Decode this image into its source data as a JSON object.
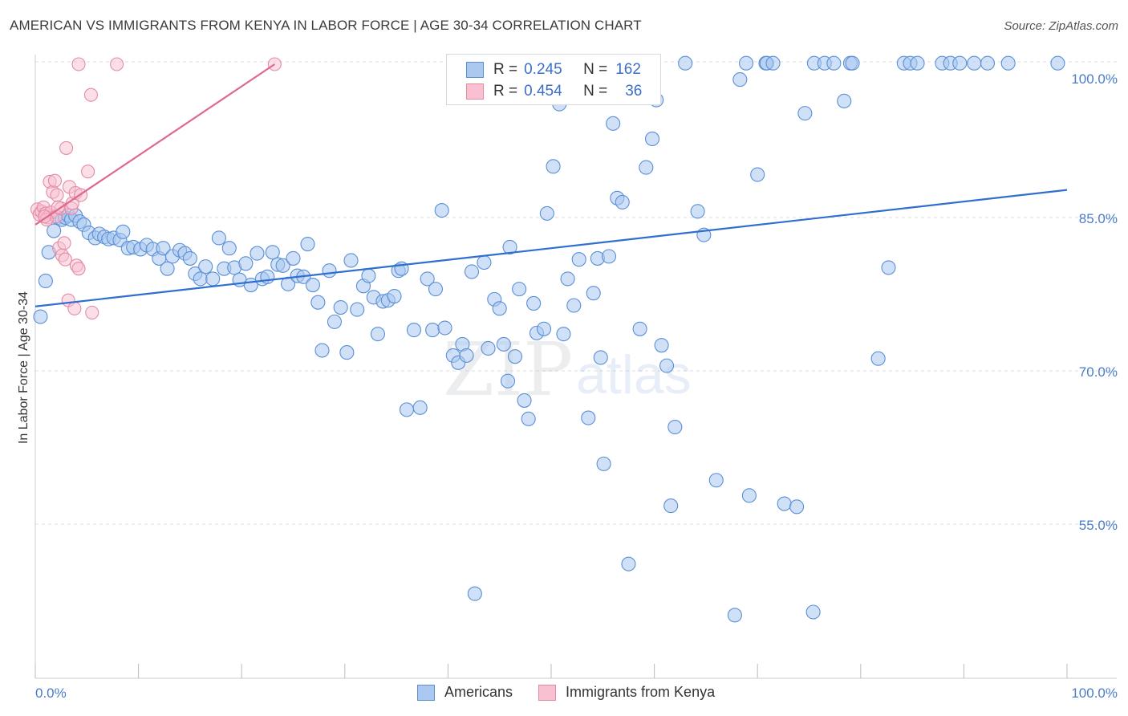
{
  "title": "AMERICAN VS IMMIGRANTS FROM KENYA IN LABOR FORCE | AGE 30-34 CORRELATION CHART",
  "source": "Source: ZipAtlas.com",
  "watermark": {
    "zip": "ZIP",
    "atlas": "atlas"
  },
  "legend": {
    "r_label": "R =",
    "n_label": "N =",
    "rows": [
      {
        "r": "0.245",
        "n": "162",
        "fill": "#aac8f0",
        "stroke": "#5a8fd6"
      },
      {
        "r": "0.454",
        "n": "36",
        "fill": "#f8c0d0",
        "stroke": "#e58aa6"
      }
    ]
  },
  "bottom_legend": [
    "Americans",
    "Immigrants from Kenya"
  ],
  "colors": {
    "blue_fill": "#aac8f0",
    "blue_stroke": "#5a8fd6",
    "blue_line": "#2f6fd0",
    "pink_fill": "#f8c0d0",
    "pink_stroke": "#e58aa6",
    "pink_line": "#e0678e",
    "grid": "#dddddd",
    "tick_text": "#4a7cc9"
  },
  "chart_data": {
    "type": "scatter",
    "xlabel": "",
    "ylabel": "In Labor Force | Age 30-34",
    "xlim": [
      0,
      100
    ],
    "ylim": [
      40,
      101
    ],
    "x_tick_labels": [
      "0.0%",
      "100.0%"
    ],
    "y_tick_labels": [
      "55.0%",
      "70.0%",
      "85.0%",
      "100.0%"
    ],
    "y_ticks": [
      55,
      70,
      85,
      100
    ],
    "grid": "horizontal dashed",
    "legend_position": "top-center",
    "series": [
      {
        "name": "Americans",
        "trend": [
          [
            0,
            76.3
          ],
          [
            100,
            87.7
          ]
        ],
        "points": [
          [
            0.5,
            75.3
          ],
          [
            1,
            78.8
          ],
          [
            1.3,
            81.6
          ],
          [
            1.8,
            83.7
          ],
          [
            2.2,
            85.0
          ],
          [
            2.6,
            84.8
          ],
          [
            2.9,
            85.0
          ],
          [
            3.2,
            85.2
          ],
          [
            3.5,
            84.8
          ],
          [
            3.9,
            85.2
          ],
          [
            4.3,
            84.6
          ],
          [
            4.7,
            84.3
          ],
          [
            5.2,
            83.5
          ],
          [
            5.8,
            83.0
          ],
          [
            6.2,
            83.4
          ],
          [
            6.7,
            83.1
          ],
          [
            7.1,
            82.9
          ],
          [
            7.6,
            83.0
          ],
          [
            8.2,
            82.8
          ],
          [
            8.5,
            83.6
          ],
          [
            9.0,
            82.0
          ],
          [
            9.5,
            82.1
          ],
          [
            10.2,
            81.9
          ],
          [
            10.8,
            82.3
          ],
          [
            11.4,
            81.9
          ],
          [
            12.0,
            81.0
          ],
          [
            12.4,
            82.0
          ],
          [
            12.8,
            80.0
          ],
          [
            13.3,
            81.2
          ],
          [
            14.0,
            81.8
          ],
          [
            14.5,
            81.5
          ],
          [
            15.0,
            81.0
          ],
          [
            15.5,
            79.5
          ],
          [
            16.0,
            79.0
          ],
          [
            16.5,
            80.2
          ],
          [
            17.2,
            79.0
          ],
          [
            17.8,
            83.0
          ],
          [
            18.3,
            80.0
          ],
          [
            18.8,
            82.0
          ],
          [
            19.3,
            80.1
          ],
          [
            19.8,
            78.9
          ],
          [
            20.4,
            80.5
          ],
          [
            20.9,
            78.4
          ],
          [
            21.5,
            81.5
          ],
          [
            22.0,
            79.0
          ],
          [
            22.5,
            79.2
          ],
          [
            23.0,
            81.6
          ],
          [
            23.5,
            80.4
          ],
          [
            24.0,
            80.3
          ],
          [
            24.5,
            78.5
          ],
          [
            25.0,
            81.0
          ],
          [
            25.4,
            79.3
          ],
          [
            26.0,
            79.2
          ],
          [
            26.4,
            82.4
          ],
          [
            26.9,
            78.4
          ],
          [
            27.4,
            76.7
          ],
          [
            27.8,
            72.0
          ],
          [
            28.5,
            79.8
          ],
          [
            29.0,
            74.8
          ],
          [
            29.6,
            76.2
          ],
          [
            30.2,
            71.8
          ],
          [
            30.6,
            80.8
          ],
          [
            31.2,
            76.0
          ],
          [
            31.8,
            78.3
          ],
          [
            32.3,
            79.3
          ],
          [
            32.8,
            77.2
          ],
          [
            33.2,
            73.6
          ],
          [
            33.7,
            76.8
          ],
          [
            34.2,
            76.9
          ],
          [
            34.8,
            77.3
          ],
          [
            35.2,
            79.8
          ],
          [
            35.5,
            80.0
          ],
          [
            36.0,
            66.2
          ],
          [
            36.7,
            74.0
          ],
          [
            37.3,
            66.4
          ],
          [
            38.0,
            79.0
          ],
          [
            38.5,
            74.0
          ],
          [
            38.8,
            78.0
          ],
          [
            39.4,
            85.7
          ],
          [
            39.7,
            74.2
          ],
          [
            40.5,
            71.5
          ],
          [
            41.0,
            70.8
          ],
          [
            41.4,
            72.6
          ],
          [
            41.8,
            71.5
          ],
          [
            42.3,
            79.7
          ],
          [
            42.6,
            48.2
          ],
          [
            43.5,
            80.6
          ],
          [
            43.9,
            72.2
          ],
          [
            44.5,
            77.0
          ],
          [
            45.0,
            76.1
          ],
          [
            45.4,
            72.6
          ],
          [
            45.8,
            69.0
          ],
          [
            46.0,
            82.1
          ],
          [
            46.5,
            71.4
          ],
          [
            46.9,
            78.0
          ],
          [
            47.4,
            67.1
          ],
          [
            47.8,
            65.3
          ],
          [
            48.3,
            76.6
          ],
          [
            48.6,
            73.7
          ],
          [
            49.3,
            74.1
          ],
          [
            49.6,
            85.4
          ],
          [
            50.2,
            90.0
          ],
          [
            50.8,
            96.1
          ],
          [
            51.2,
            73.6
          ],
          [
            51.6,
            79.0
          ],
          [
            52.2,
            76.4
          ],
          [
            52.7,
            80.9
          ],
          [
            53.1,
            100.1
          ],
          [
            53.6,
            65.4
          ],
          [
            54.1,
            77.6
          ],
          [
            54.5,
            81.0
          ],
          [
            54.8,
            71.3
          ],
          [
            55.1,
            60.9
          ],
          [
            55.6,
            81.2
          ],
          [
            56.0,
            94.2
          ],
          [
            56.4,
            86.9
          ],
          [
            56.9,
            86.5
          ],
          [
            57.5,
            51.1
          ],
          [
            58.0,
            100.1
          ],
          [
            58.6,
            74.1
          ],
          [
            59.2,
            89.9
          ],
          [
            59.8,
            92.7
          ],
          [
            60.2,
            96.5
          ],
          [
            60.7,
            72.5
          ],
          [
            61.2,
            70.5
          ],
          [
            61.6,
            56.8
          ],
          [
            62.0,
            64.5
          ],
          [
            63.0,
            100.1
          ],
          [
            64.2,
            85.6
          ],
          [
            64.8,
            83.3
          ],
          [
            66.0,
            59.3
          ],
          [
            67.8,
            46.1
          ],
          [
            68.3,
            98.5
          ],
          [
            68.9,
            100.1
          ],
          [
            69.2,
            57.8
          ],
          [
            70.0,
            89.2
          ],
          [
            70.8,
            100.1
          ],
          [
            70.9,
            100.1
          ],
          [
            71.5,
            100.1
          ],
          [
            72.6,
            57.0
          ],
          [
            73.8,
            56.7
          ],
          [
            74.6,
            95.2
          ],
          [
            75.4,
            46.4
          ],
          [
            75.5,
            100.1
          ],
          [
            76.5,
            100.1
          ],
          [
            77.4,
            100.1
          ],
          [
            78.4,
            96.4
          ],
          [
            79.0,
            100.1
          ],
          [
            79.2,
            100.1
          ],
          [
            81.7,
            71.2
          ],
          [
            82.7,
            80.1
          ],
          [
            84.2,
            100.1
          ],
          [
            84.8,
            100.1
          ],
          [
            85.5,
            100.1
          ],
          [
            87.9,
            100.1
          ],
          [
            88.7,
            100.1
          ],
          [
            89.6,
            100.1
          ],
          [
            91.0,
            100.1
          ],
          [
            92.3,
            100.1
          ],
          [
            94.3,
            100.1
          ],
          [
            99.1,
            100.1
          ]
        ]
      },
      {
        "name": "Immigrants from Kenya",
        "trend": [
          [
            0,
            84.3
          ],
          [
            23.2,
            100.0
          ]
        ],
        "points": [
          [
            0.2,
            85.8
          ],
          [
            0.4,
            85.3
          ],
          [
            0.6,
            85.6
          ],
          [
            0.8,
            86.0
          ],
          [
            1.0,
            85.4
          ],
          [
            1.2,
            85.0
          ],
          [
            1.4,
            88.5
          ],
          [
            1.5,
            85.5
          ],
          [
            1.7,
            87.5
          ],
          [
            1.9,
            88.6
          ],
          [
            2.0,
            85.1
          ],
          [
            2.1,
            87.2
          ],
          [
            2.3,
            82.0
          ],
          [
            2.5,
            85.9
          ],
          [
            2.6,
            81.3
          ],
          [
            2.8,
            82.5
          ],
          [
            2.9,
            80.9
          ],
          [
            3.0,
            91.8
          ],
          [
            3.2,
            76.9
          ],
          [
            3.3,
            88.0
          ],
          [
            3.5,
            85.9
          ],
          [
            3.6,
            86.4
          ],
          [
            3.8,
            76.1
          ],
          [
            3.9,
            87.4
          ],
          [
            4.0,
            80.3
          ],
          [
            4.2,
            80.0
          ],
          [
            4.4,
            87.2
          ],
          [
            5.1,
            89.5
          ],
          [
            5.4,
            97.0
          ],
          [
            5.5,
            75.7
          ],
          [
            4.2,
            100.0
          ],
          [
            7.9,
            100.0
          ],
          [
            23.2,
            100.0
          ],
          [
            1.1,
            84.8
          ],
          [
            2.2,
            86.0
          ],
          [
            0.9,
            85.1
          ]
        ]
      }
    ]
  }
}
